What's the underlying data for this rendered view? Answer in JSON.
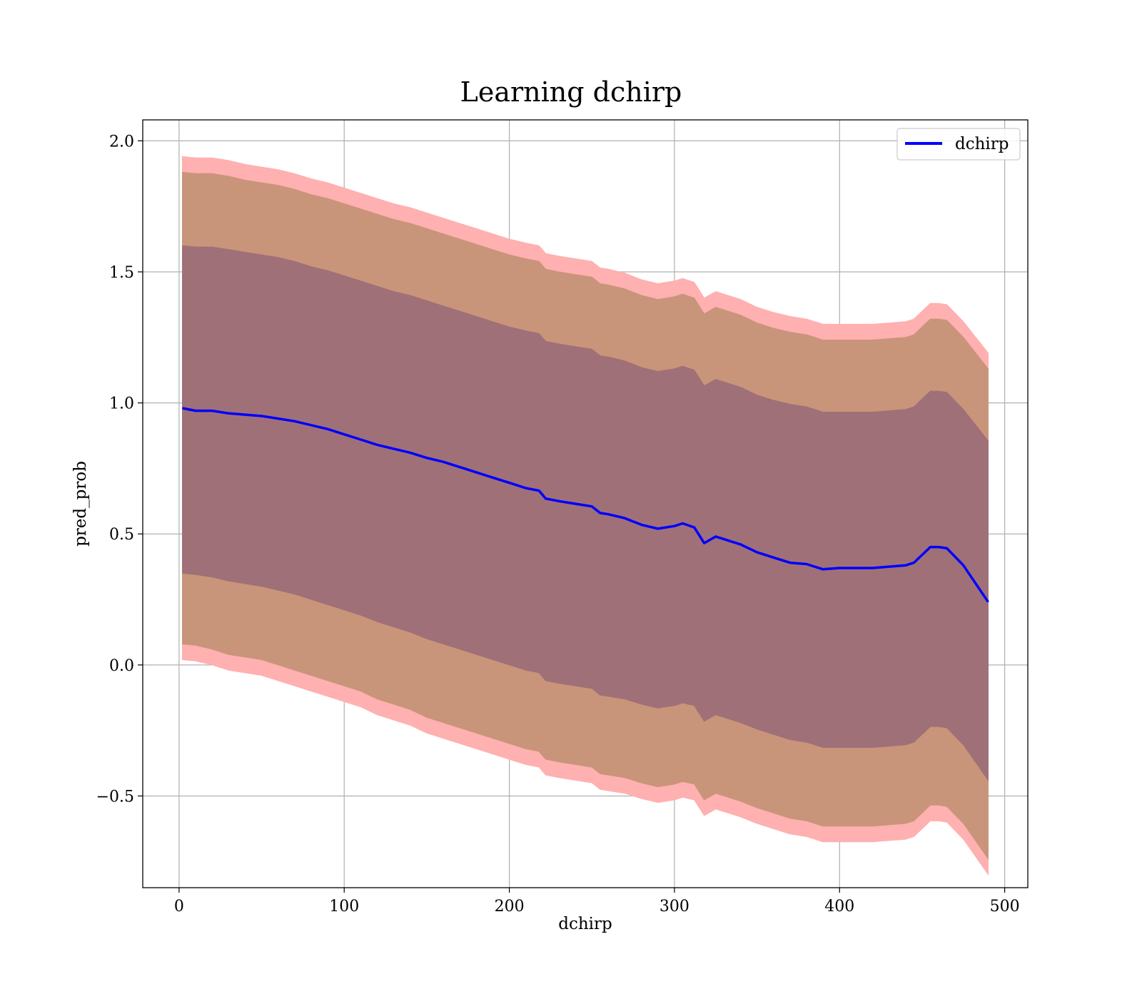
{
  "chart_data": {
    "type": "line",
    "title": "Learning dchirp",
    "xlabel": "dchirp",
    "ylabel": "pred_prob",
    "xlim": [
      -22,
      514
    ],
    "ylim": [
      -0.85,
      2.08
    ],
    "xticks": [
      0,
      100,
      200,
      300,
      400,
      500
    ],
    "yticks": [
      -0.5,
      0.0,
      0.5,
      1.0,
      1.5,
      2.0
    ],
    "xtick_labels": [
      "0",
      "100",
      "200",
      "300",
      "400",
      "500"
    ],
    "ytick_labels": [
      "−0.5",
      "0.0",
      "0.5",
      "1.0",
      "1.5",
      "2.0"
    ],
    "grid": true,
    "legend": {
      "position": "top-right",
      "entries": [
        "dchirp"
      ]
    },
    "colors": {
      "line": "#0000ff",
      "band_outer": "#ffb0b0",
      "band_middle": "#c8957a",
      "band_inner": "#a07078"
    },
    "x": [
      2,
      10,
      20,
      30,
      40,
      50,
      60,
      70,
      80,
      90,
      100,
      110,
      120,
      130,
      140,
      150,
      160,
      170,
      180,
      190,
      200,
      210,
      218,
      222,
      230,
      240,
      250,
      255,
      260,
      270,
      280,
      290,
      300,
      305,
      312,
      318,
      325,
      330,
      340,
      350,
      360,
      370,
      380,
      390,
      400,
      410,
      420,
      430,
      440,
      445,
      450,
      455,
      460,
      465,
      475,
      490
    ],
    "series": [
      {
        "name": "dchirp",
        "values": [
          0.98,
          0.97,
          0.97,
          0.96,
          0.955,
          0.95,
          0.94,
          0.93,
          0.915,
          0.9,
          0.88,
          0.86,
          0.84,
          0.825,
          0.81,
          0.79,
          0.775,
          0.755,
          0.735,
          0.715,
          0.695,
          0.675,
          0.665,
          0.635,
          0.625,
          0.615,
          0.605,
          0.58,
          0.575,
          0.56,
          0.535,
          0.52,
          0.53,
          0.54,
          0.525,
          0.465,
          0.49,
          0.48,
          0.46,
          0.43,
          0.41,
          0.39,
          0.385,
          0.365,
          0.37,
          0.37,
          0.37,
          0.375,
          0.38,
          0.39,
          0.42,
          0.45,
          0.45,
          0.445,
          0.38,
          0.24
        ]
      }
    ],
    "bands": [
      {
        "name": "outer",
        "lower": [
          0.02,
          0.015,
          0.0,
          -0.02,
          -0.03,
          -0.04,
          -0.06,
          -0.08,
          -0.1,
          -0.12,
          -0.14,
          -0.16,
          -0.19,
          -0.21,
          -0.23,
          -0.26,
          -0.28,
          -0.3,
          -0.32,
          -0.34,
          -0.36,
          -0.38,
          -0.39,
          -0.42,
          -0.43,
          -0.44,
          -0.45,
          -0.475,
          -0.48,
          -0.49,
          -0.51,
          -0.525,
          -0.515,
          -0.505,
          -0.515,
          -0.575,
          -0.55,
          -0.56,
          -0.58,
          -0.605,
          -0.625,
          -0.645,
          -0.655,
          -0.675,
          -0.675,
          -0.675,
          -0.675,
          -0.67,
          -0.665,
          -0.655,
          -0.625,
          -0.595,
          -0.595,
          -0.6,
          -0.665,
          -0.8
        ],
        "upper": [
          1.94,
          1.935,
          1.935,
          1.925,
          1.91,
          1.9,
          1.89,
          1.875,
          1.855,
          1.84,
          1.82,
          1.8,
          1.78,
          1.76,
          1.745,
          1.725,
          1.705,
          1.685,
          1.665,
          1.645,
          1.625,
          1.61,
          1.6,
          1.57,
          1.56,
          1.55,
          1.54,
          1.515,
          1.51,
          1.495,
          1.47,
          1.455,
          1.465,
          1.475,
          1.46,
          1.4,
          1.425,
          1.415,
          1.395,
          1.365,
          1.345,
          1.33,
          1.32,
          1.3,
          1.3,
          1.3,
          1.3,
          1.305,
          1.31,
          1.32,
          1.35,
          1.38,
          1.38,
          1.375,
          1.31,
          1.19
        ]
      },
      {
        "name": "middle",
        "lower": [
          0.08,
          0.075,
          0.06,
          0.04,
          0.03,
          0.02,
          0.0,
          -0.02,
          -0.04,
          -0.06,
          -0.08,
          -0.1,
          -0.13,
          -0.15,
          -0.17,
          -0.2,
          -0.22,
          -0.24,
          -0.26,
          -0.28,
          -0.3,
          -0.32,
          -0.33,
          -0.36,
          -0.37,
          -0.38,
          -0.39,
          -0.415,
          -0.42,
          -0.43,
          -0.45,
          -0.465,
          -0.455,
          -0.445,
          -0.455,
          -0.515,
          -0.49,
          -0.5,
          -0.52,
          -0.545,
          -0.565,
          -0.585,
          -0.595,
          -0.615,
          -0.615,
          -0.615,
          -0.615,
          -0.61,
          -0.605,
          -0.595,
          -0.565,
          -0.535,
          -0.535,
          -0.54,
          -0.605,
          -0.74
        ],
        "upper": [
          1.88,
          1.875,
          1.875,
          1.865,
          1.85,
          1.84,
          1.83,
          1.815,
          1.795,
          1.78,
          1.76,
          1.74,
          1.72,
          1.7,
          1.685,
          1.665,
          1.645,
          1.625,
          1.605,
          1.585,
          1.565,
          1.55,
          1.54,
          1.51,
          1.5,
          1.49,
          1.48,
          1.455,
          1.45,
          1.435,
          1.41,
          1.395,
          1.405,
          1.415,
          1.4,
          1.34,
          1.365,
          1.355,
          1.335,
          1.305,
          1.285,
          1.27,
          1.26,
          1.24,
          1.24,
          1.24,
          1.24,
          1.245,
          1.25,
          1.26,
          1.29,
          1.32,
          1.32,
          1.315,
          1.25,
          1.13
        ]
      },
      {
        "name": "inner",
        "lower": [
          0.35,
          0.345,
          0.335,
          0.32,
          0.31,
          0.3,
          0.285,
          0.27,
          0.25,
          0.23,
          0.21,
          0.19,
          0.165,
          0.145,
          0.125,
          0.1,
          0.08,
          0.06,
          0.04,
          0.02,
          0.0,
          -0.02,
          -0.03,
          -0.06,
          -0.07,
          -0.08,
          -0.09,
          -0.115,
          -0.12,
          -0.13,
          -0.15,
          -0.165,
          -0.155,
          -0.145,
          -0.155,
          -0.215,
          -0.19,
          -0.2,
          -0.22,
          -0.245,
          -0.265,
          -0.285,
          -0.295,
          -0.315,
          -0.315,
          -0.315,
          -0.315,
          -0.31,
          -0.305,
          -0.295,
          -0.265,
          -0.235,
          -0.235,
          -0.24,
          -0.305,
          -0.44
        ],
        "upper": [
          1.6,
          1.595,
          1.595,
          1.585,
          1.575,
          1.565,
          1.555,
          1.54,
          1.52,
          1.505,
          1.485,
          1.465,
          1.445,
          1.425,
          1.41,
          1.39,
          1.37,
          1.35,
          1.33,
          1.31,
          1.29,
          1.275,
          1.265,
          1.235,
          1.225,
          1.215,
          1.205,
          1.18,
          1.175,
          1.16,
          1.135,
          1.12,
          1.13,
          1.14,
          1.125,
          1.065,
          1.09,
          1.08,
          1.06,
          1.03,
          1.01,
          0.995,
          0.985,
          0.965,
          0.965,
          0.965,
          0.965,
          0.97,
          0.975,
          0.985,
          1.015,
          1.045,
          1.045,
          1.04,
          0.975,
          0.855
        ]
      }
    ]
  }
}
